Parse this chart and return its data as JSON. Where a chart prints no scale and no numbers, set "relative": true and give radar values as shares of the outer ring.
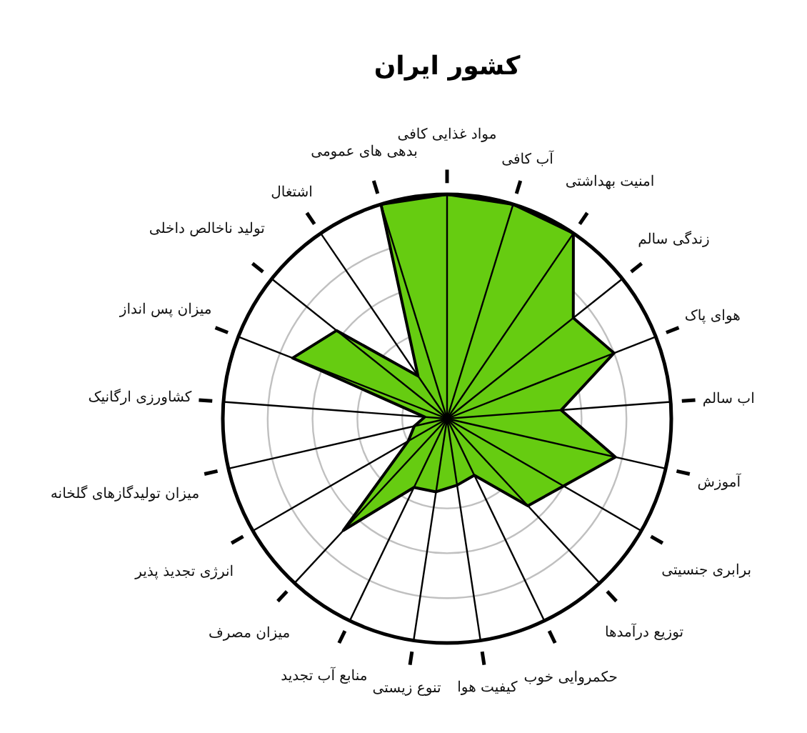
{
  "chart_data": {
    "type": "radar",
    "title": "کشور ایران",
    "relative": true,
    "grid": true,
    "categories": [
      "مواد غذایی کافی",
      "آب کافی",
      "امنیت بهداشتی",
      "زندگی سالم",
      "هوای پاک",
      "اب سالم",
      "آموزش",
      "برابری جنسیتی",
      "توزیع درآمدها",
      "حکمروایی خوب",
      "کیفیت هوا",
      "تنوع زیستی",
      "منابع آب تجدید",
      "میزان مصرف",
      "انرژی تجدیذ پذیر",
      "میزان  تولیدگازهای گلخانه",
      "کشاورزی ارگانیک",
      "میزان پس انداز",
      "تولید ناخالص داخلی",
      "اشتغال",
      "بدهی های عمومی"
    ],
    "series": [
      {
        "color": "#66cc11",
        "values": [
          1.0,
          1.0,
          1.0,
          0.72,
          0.8,
          0.51,
          0.77,
          0.6,
          0.53,
          0.28,
          0.3,
          0.33,
          0.34,
          0.68,
          0.2,
          0.15,
          0.1,
          0.74,
          0.63,
          0.23,
          1.0
        ]
      }
    ]
  }
}
